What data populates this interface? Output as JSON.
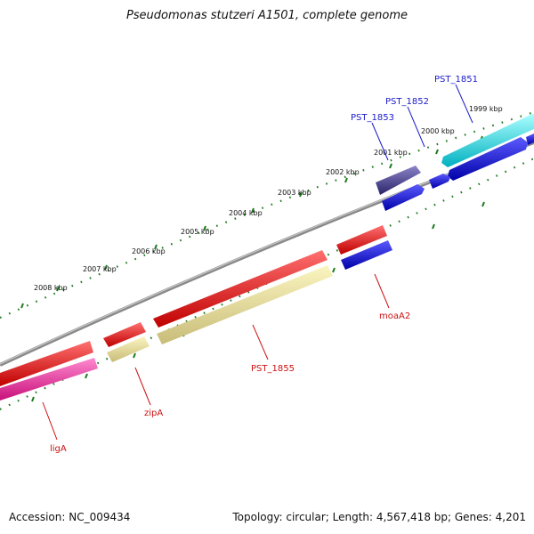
{
  "title": "Pseudomonas stutzeri A1501, complete genome",
  "footer": {
    "accession": "Accession: NC_009434",
    "summary": "Topology: circular; Length: 4,567,418 bp; Genes: 4,201"
  },
  "colors": {
    "backbone": "#8a8a8a",
    "tick_ring": "#1e7a1e",
    "label_blue": "#1a1acc",
    "label_red": "#cc1111"
  },
  "kbp_labels": [
    "1999 kbp",
    "2000 kbp",
    "2001 kbp",
    "2002 kbp",
    "2003 kbp",
    "2004 kbp",
    "2005 kbp",
    "2006 kbp",
    "2007 kbp",
    "2008 kbp"
  ],
  "genes": [
    {
      "id": "PST_1851",
      "strand": "forward"
    },
    {
      "id": "PST_1852",
      "strand": "forward"
    },
    {
      "id": "PST_1853",
      "strand": "forward"
    },
    {
      "id": "moaA2",
      "strand": "reverse"
    },
    {
      "id": "PST_1855",
      "strand": "reverse"
    },
    {
      "id": "zipA",
      "strand": "reverse"
    },
    {
      "id": "ligA",
      "strand": "reverse"
    }
  ]
}
